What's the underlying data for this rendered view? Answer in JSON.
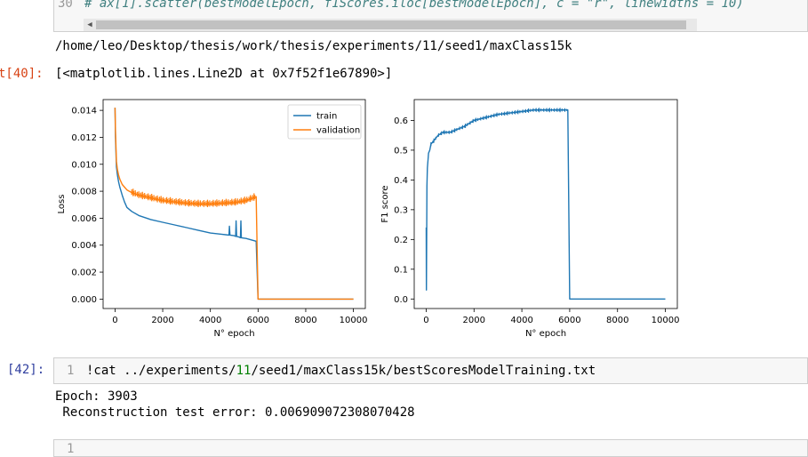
{
  "top_cell": {
    "line_number": "30",
    "comment": "# ax[1].scatter(bestModelEpoch, f1Scores.iloc[bestModelEpoch], c = \"r\", linewidths = 10)"
  },
  "output1": {
    "path_text": "/home/leo/Desktop/thesis/work/thesis/experiments/11/seed1/maxClass15k",
    "prompt": "t[40]:",
    "repr_text": "[<matplotlib.lines.Line2D at 0x7f52f1e67890>]"
  },
  "chart_data": [
    {
      "type": "line",
      "xlabel": "N° epoch",
      "ylabel": "Loss",
      "xlim": [
        -500,
        10500
      ],
      "ylim": [
        -0.0007,
        0.0148
      ],
      "xticks": [
        0,
        2000,
        4000,
        6000,
        8000,
        10000
      ],
      "yticks": [
        0.0,
        0.002,
        0.004,
        0.006,
        0.008,
        0.01,
        0.012,
        0.014
      ],
      "ytick_labels": [
        "0.000",
        "0.002",
        "0.004",
        "0.006",
        "0.008",
        "0.010",
        "0.012",
        "0.014"
      ],
      "legend_position": "top-right",
      "series": [
        {
          "name": "train",
          "color": "#1f77b4",
          "x": [
            0,
            20,
            60,
            100,
            150,
            200,
            300,
            400,
            500,
            700,
            1000,
            1500,
            2000,
            2500,
            3000,
            3500,
            4000,
            4500,
            4780,
            4800,
            4820,
            5000,
            5060,
            5080,
            5100,
            5200,
            5260,
            5280,
            5300,
            5500,
            5900,
            5920,
            6000,
            7000,
            8000,
            9000,
            10000
          ],
          "y": [
            0.0142,
            0.012,
            0.0098,
            0.0092,
            0.0087,
            0.0083,
            0.0077,
            0.0072,
            0.0068,
            0.0065,
            0.0062,
            0.0059,
            0.0057,
            0.0055,
            0.0053,
            0.0051,
            0.0049,
            0.0048,
            0.00475,
            0.0054,
            0.00475,
            0.0047,
            0.00465,
            0.0058,
            0.00465,
            0.0046,
            0.00455,
            0.0058,
            0.00455,
            0.0045,
            0.0043,
            0.0043,
            0.0,
            0.0,
            0.0,
            0.0,
            0.0
          ]
        },
        {
          "name": "validation",
          "color": "#ff7f0e",
          "x": [
            0,
            20,
            60,
            100,
            150,
            200,
            300,
            400,
            500,
            700,
            1000,
            1500,
            2000,
            2500,
            3000,
            3500,
            4000,
            4500,
            5000,
            5500,
            5800,
            5920,
            6000,
            7000,
            8000,
            9000,
            10000
          ],
          "y": [
            0.0142,
            0.0125,
            0.0102,
            0.0096,
            0.0092,
            0.0089,
            0.0085,
            0.0083,
            0.0081,
            0.0079,
            0.0077,
            0.0075,
            0.0073,
            0.0072,
            0.0071,
            0.00705,
            0.00705,
            0.0071,
            0.00715,
            0.0073,
            0.0075,
            0.0076,
            0.0,
            0.0,
            0.0,
            0.0,
            0.0
          ]
        }
      ]
    },
    {
      "type": "line",
      "xlabel": "N° epoch",
      "ylabel": "F1 score",
      "xlim": [
        -500,
        10500
      ],
      "ylim": [
        -0.032,
        0.67
      ],
      "xticks": [
        0,
        2000,
        4000,
        6000,
        8000,
        10000
      ],
      "yticks": [
        0.0,
        0.1,
        0.2,
        0.3,
        0.4,
        0.5,
        0.6
      ],
      "ytick_labels": [
        "0.0",
        "0.1",
        "0.2",
        "0.3",
        "0.4",
        "0.5",
        "0.6"
      ],
      "series": [
        {
          "color": "#1f77b4",
          "x": [
            0,
            10,
            20,
            30,
            50,
            80,
            100,
            150,
            200,
            300,
            400,
            500,
            700,
            1000,
            1300,
            1600,
            2000,
            2500,
            3000,
            3500,
            4000,
            4500,
            5000,
            5500,
            5900,
            5920,
            6000,
            7000,
            8000,
            9000,
            10000
          ],
          "y": [
            0.24,
            0.03,
            0.2,
            0.38,
            0.44,
            0.47,
            0.49,
            0.5,
            0.52,
            0.53,
            0.54,
            0.55,
            0.56,
            0.56,
            0.57,
            0.58,
            0.6,
            0.61,
            0.62,
            0.625,
            0.63,
            0.635,
            0.635,
            0.635,
            0.635,
            0.635,
            0.0,
            0.0,
            0.0,
            0.0,
            0.0
          ]
        }
      ]
    }
  ],
  "cell42": {
    "prompt": "[42]:",
    "line_number": "1",
    "code_pre": "!cat ../experiments/",
    "code_num": "11",
    "code_post": "/seed1/maxClass15k/bestScoresModelTraining.txt"
  },
  "output42": {
    "line1": "Epoch: 3903",
    "line2": " Reconstruction test error: 0.006909072308070428"
  },
  "next_cell": {
    "line_number": "1"
  }
}
